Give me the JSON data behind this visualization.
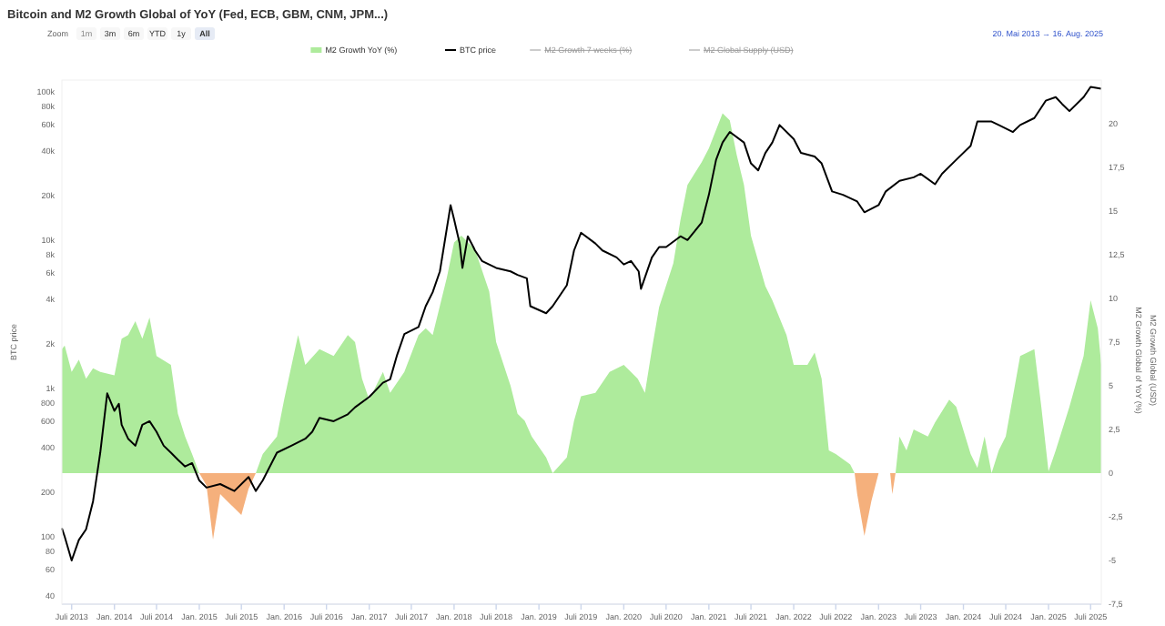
{
  "chart_data": {
    "type": "area",
    "title": "Bitcoin and M2 Growth Global of YoY (Fed, ECB, GBM, CNM, JPM...)",
    "ylabel": "BTC price",
    "y2label": "M2 Growth Global of YoY (%)",
    "annotations": [
      "Zoom",
      "1m",
      "3m",
      "6m",
      "YTD",
      "1y",
      "All",
      "20. Mai 2013  →  16. Aug. 2025",
      "M2 Growth 7 weeks (%)",
      "M2 Global Supply (USD)",
      "M2 Growth Global (USD)"
    ],
    "log": "y",
    "legend": "top",
    "xlim": [
      "2013-05-20",
      "2025-08-16"
    ],
    "xticks": [
      {
        "value": "2013-07-01",
        "label": "Juli 2013"
      },
      {
        "value": "2014-01-01",
        "label": "Jan. 2014"
      },
      {
        "value": "2014-07-01",
        "label": "Juli 2014"
      },
      {
        "value": "2015-01-01",
        "label": "Jan. 2015"
      },
      {
        "value": "2015-07-01",
        "label": "Juli 2015"
      },
      {
        "value": "2016-01-01",
        "label": "Jan. 2016"
      },
      {
        "value": "2016-07-01",
        "label": "Juli 2016"
      },
      {
        "value": "2017-01-01",
        "label": "Jan. 2017"
      },
      {
        "value": "2017-07-01",
        "label": "Juli 2017"
      },
      {
        "value": "2018-01-01",
        "label": "Jan. 2018"
      },
      {
        "value": "2018-07-01",
        "label": "Juli 2018"
      },
      {
        "value": "2019-01-01",
        "label": "Jan. 2019"
      },
      {
        "value": "2019-07-01",
        "label": "Juli 2019"
      },
      {
        "value": "2020-01-01",
        "label": "Jan. 2020"
      },
      {
        "value": "2020-07-01",
        "label": "Juli 2020"
      },
      {
        "value": "2021-01-01",
        "label": "Jan. 2021"
      },
      {
        "value": "2021-07-01",
        "label": "Juli 2021"
      },
      {
        "value": "2022-01-01",
        "label": "Jan. 2022"
      },
      {
        "value": "2022-07-01",
        "label": "Juli 2022"
      },
      {
        "value": "2023-01-01",
        "label": "Jan. 2023"
      },
      {
        "value": "2023-07-01",
        "label": "Juli 2023"
      },
      {
        "value": "2024-01-01",
        "label": "Jan. 2024"
      },
      {
        "value": "2024-07-01",
        "label": "Juli 2024"
      },
      {
        "value": "2025-01-01",
        "label": "Jan. 2025"
      },
      {
        "value": "2025-07-01",
        "label": "Juli 2025"
      }
    ],
    "ylim": [
      35,
      120000
    ],
    "yticks": [
      40,
      60,
      80,
      100,
      200,
      400,
      600,
      800,
      {
        "value": 1000,
        "label": "1k"
      },
      {
        "value": 2000,
        "label": "2k"
      },
      {
        "value": 4000,
        "label": "4k"
      },
      {
        "value": 6000,
        "label": "6k"
      },
      {
        "value": 8000,
        "label": "8k"
      },
      {
        "value": 10000,
        "label": "10k"
      },
      {
        "value": 20000,
        "label": "20k"
      },
      {
        "value": 40000,
        "label": "40k"
      },
      {
        "value": 60000,
        "label": "60k"
      },
      {
        "value": 80000,
        "label": "80k"
      },
      {
        "value": 100000,
        "label": "100k"
      }
    ],
    "y2lim": [
      -7.5,
      22.5
    ],
    "y2ticks": [
      {
        "value": -7.5,
        "label": "-7,5"
      },
      -5,
      {
        "value": -2.5,
        "label": "-2,5"
      },
      0,
      {
        "value": 2.5,
        "label": "2,5"
      },
      5,
      {
        "value": 7.5,
        "label": "7,5"
      },
      10,
      {
        "value": 12.5,
        "label": "12,5"
      },
      15,
      {
        "value": 17.5,
        "label": "17,5"
      },
      20
    ],
    "series": [
      {
        "name": "M2 Growth YoY (%)",
        "axis": "y2",
        "color": "#aeeb9c",
        "x": [
          "2013-05-20",
          "2013-06",
          "2013-07",
          "2013-08",
          "2013-09",
          "2013-10",
          "2013-11",
          "2014-01",
          "2014-02",
          "2014-03",
          "2014-04",
          "2014-05",
          "2014-06",
          "2014-07",
          "2014-09",
          "2014-10",
          "2014-11",
          "2014-12",
          "2015-01",
          "2015-05",
          "2015-09",
          "2015-10",
          "2015-12",
          "2016-01",
          "2016-03",
          "2016-04",
          "2016-06",
          "2016-08",
          "2016-10",
          "2016-11",
          "2016-12",
          "2017-01",
          "2017-03",
          "2017-04",
          "2017-06",
          "2017-08",
          "2017-09",
          "2017-10",
          "2017-12",
          "2018-01",
          "2018-02",
          "2018-04",
          "2018-06",
          "2018-07",
          "2018-09",
          "2018-10",
          "2018-11",
          "2018-12",
          "2019-02",
          "2019-03",
          "2019-05",
          "2019-06",
          "2019-07",
          "2019-09",
          "2019-11",
          "2020-01",
          "2020-03",
          "2020-04",
          "2020-05",
          "2020-06",
          "2020-08",
          "2020-09",
          "2020-10",
          "2020-12",
          "2021-01",
          "2021-03",
          "2021-04",
          "2021-05",
          "2021-06",
          "2021-07",
          "2021-09",
          "2021-10",
          "2021-12",
          "2022-01",
          "2022-03",
          "2022-04",
          "2022-05",
          "2022-06",
          "2022-07",
          "2022-09",
          "2022-09-20",
          "2022-10",
          "2023-03-15",
          "2023-04",
          "2023-05",
          "2023-06",
          "2023-08",
          "2023-09",
          "2023-11",
          "2023-12",
          "2024-02",
          "2024-03",
          "2024-04",
          "2024-05",
          "2024-06",
          "2024-07",
          "2024-09",
          "2024-11",
          "2024-12",
          "2025-01",
          "2025-02",
          "2025-04",
          "2025-06",
          "2025-07",
          "2025-08",
          "2025-08-16"
        ],
        "values": [
          7.1,
          7.3,
          5.8,
          6.5,
          5.4,
          6.0,
          5.8,
          5.6,
          7.7,
          7.9,
          8.7,
          7.7,
          8.9,
          6.7,
          6.2,
          3.4,
          2.1,
          1.1,
          0,
          null,
          0,
          1.1,
          2.1,
          4.2,
          7.9,
          6.2,
          7.1,
          6.7,
          7.9,
          7.5,
          5.4,
          4.2,
          5.8,
          4.6,
          5.8,
          7.9,
          8.3,
          7.9,
          11.2,
          13.2,
          13.6,
          12.8,
          10.4,
          7.5,
          5.0,
          3.4,
          3.0,
          2.1,
          0.9,
          0,
          0.9,
          3.0,
          4.4,
          4.6,
          5.8,
          6.2,
          5.4,
          4.6,
          7.1,
          9.5,
          12.0,
          14.5,
          16.5,
          17.8,
          18.6,
          20.6,
          20.2,
          18.2,
          16.5,
          13.6,
          10.7,
          9.9,
          7.9,
          6.2,
          6.2,
          6.9,
          5.4,
          1.3,
          1.1,
          0.5,
          0,
          null,
          0,
          2.1,
          1.3,
          2.5,
          2.1,
          2.9,
          4.2,
          3.8,
          1.1,
          0.3,
          2.1,
          0,
          1.3,
          2.1,
          6.7,
          7.1,
          3.8,
          0.1,
          1.3,
          3.8,
          6.7,
          9.9,
          8.3,
          6.2
        ]
      },
      {
        "axis": "y2",
        "color": "#f5b07c",
        "x": [
          "2015-01",
          "2015-02",
          "2015-03",
          "2015-04",
          "2015-05",
          "2015-07",
          "2015-08",
          "2015-09",
          "2016-01",
          "2022-09-20",
          "2022-10",
          "2022-11",
          "2022-12",
          "2023-01",
          "2023-02-10",
          "2023-02-20",
          "2023-03",
          "2023-03-15"
        ],
        "values": [
          0,
          -0.7,
          -3.8,
          -1.2,
          -1.6,
          -2.4,
          -0.9,
          0,
          null,
          0,
          -1.2,
          -3.6,
          -1.6,
          0,
          null,
          0,
          -1.2,
          0
        ]
      },
      {
        "name": "BTC price",
        "type": "line",
        "axis": "y",
        "color": "#000000",
        "x": [
          "2013-05-20",
          "2013-06",
          "2013-07",
          "2013-08",
          "2013-09",
          "2013-10",
          "2013-11",
          "2013-12",
          "2014-01",
          "2014-01-20",
          "2014-02",
          "2014-03",
          "2014-04",
          "2014-05",
          "2014-06",
          "2014-07",
          "2014-08",
          "2014-09",
          "2014-10",
          "2014-11",
          "2014-12",
          "2015-01",
          "2015-02",
          "2015-04",
          "2015-06",
          "2015-08",
          "2015-09",
          "2015-10",
          "2015-12",
          "2016-02",
          "2016-04",
          "2016-05",
          "2016-06",
          "2016-08",
          "2016-10",
          "2016-11",
          "2017-01",
          "2017-03",
          "2017-04",
          "2017-05",
          "2017-06",
          "2017-08",
          "2017-09",
          "2017-10",
          "2017-11",
          "2017-12-17",
          "2018-01",
          "2018-01-25",
          "2018-02-06",
          "2018-03",
          "2018-03-25",
          "2018-04",
          "2018-05",
          "2018-07",
          "2018-09",
          "2018-10",
          "2018-11-10",
          "2018-11-25",
          "2019-02",
          "2019-03",
          "2019-05",
          "2019-06",
          "2019-07",
          "2019-09",
          "2019-10",
          "2019-12",
          "2020-01",
          "2020-02",
          "2020-03-05",
          "2020-03-15",
          "2020-05",
          "2020-06",
          "2020-07",
          "2020-09",
          "2020-10",
          "2020-12",
          "2021-01",
          "2021-02",
          "2021-03",
          "2021-04",
          "2021-06",
          "2021-07",
          "2021-08",
          "2021-09",
          "2021-10",
          "2021-11",
          "2022-01",
          "2022-02",
          "2022-04",
          "2022-05",
          "2022-06-15",
          "2022-08",
          "2022-10",
          "2022-11",
          "2023-01",
          "2023-02",
          "2023-04",
          "2023-06",
          "2023-07",
          "2023-09",
          "2023-10",
          "2023-12",
          "2024-02",
          "2024-03",
          "2024-05",
          "2024-06",
          "2024-08",
          "2024-09",
          "2024-11",
          "2024-12-20",
          "2025-02",
          "2025-03",
          "2025-04",
          "2025-06",
          "2025-07",
          "2025-08-16"
        ],
        "values": [
          114,
          100,
          69,
          95,
          112,
          173,
          368,
          925,
          705,
          785,
          567,
          457,
          410,
          567,
          600,
          509,
          410,
          368,
          330,
          297,
          313,
          239,
          214,
          226,
          203,
          252,
          203,
          239,
          368,
          410,
          457,
          509,
          632,
          600,
          668,
          745,
          875,
          1090,
          1150,
          1680,
          2320,
          2590,
          3580,
          4450,
          6150,
          17200,
          13800,
          9480,
          6490,
          10600,
          8980,
          8510,
          7230,
          6490,
          6150,
          5820,
          5520,
          3580,
          3210,
          3580,
          4960,
          8510,
          11200,
          9480,
          8510,
          7640,
          6850,
          7230,
          6150,
          4690,
          7640,
          8980,
          8980,
          10600,
          10000,
          13100,
          20200,
          34800,
          45500,
          53600,
          45500,
          32900,
          29500,
          38700,
          45500,
          59700,
          48100,
          38700,
          36600,
          32900,
          21300,
          20200,
          18200,
          15400,
          17200,
          21300,
          25100,
          26500,
          28000,
          23800,
          28000,
          34800,
          43200,
          63000,
          63000,
          59700,
          53600,
          59700,
          66500,
          87100,
          92000,
          82600,
          74100,
          92000,
          108000,
          105000
        ]
      }
    ]
  }
}
